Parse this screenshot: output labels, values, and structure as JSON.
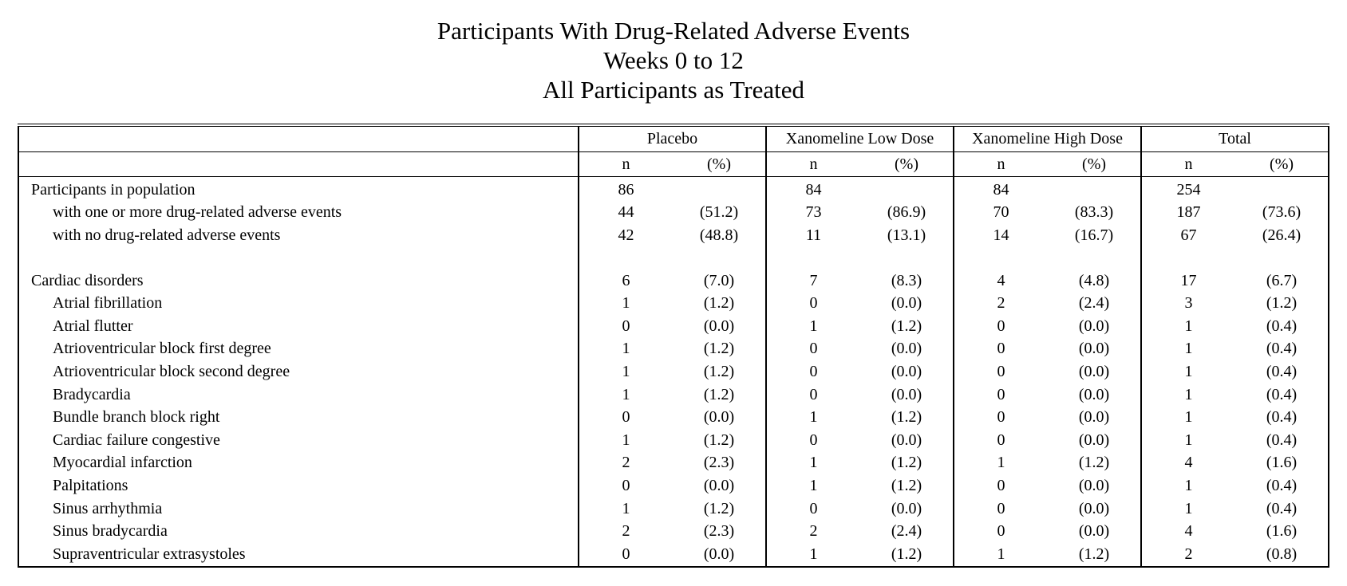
{
  "title": {
    "line1": "Participants With Drug-Related Adverse Events",
    "line2": "Weeks 0 to 12",
    "line3": "All Participants as Treated"
  },
  "groups": [
    "Placebo",
    "Xanomeline Low Dose",
    "Xanomeline High Dose",
    "Total"
  ],
  "subheaders": {
    "n": "n",
    "pct": "(%)"
  },
  "rows": [
    {
      "label": "Participants in population",
      "indent": 0,
      "vals": [
        [
          "86",
          ""
        ],
        [
          "84",
          ""
        ],
        [
          "84",
          ""
        ],
        [
          "254",
          ""
        ]
      ]
    },
    {
      "label": "with one or more drug-related adverse events",
      "indent": 1,
      "vals": [
        [
          "44",
          "(51.2)"
        ],
        [
          "73",
          "(86.9)"
        ],
        [
          "70",
          "(83.3)"
        ],
        [
          "187",
          "(73.6)"
        ]
      ]
    },
    {
      "label": "with no drug-related adverse events",
      "indent": 1,
      "vals": [
        [
          "42",
          "(48.8)"
        ],
        [
          "11",
          "(13.1)"
        ],
        [
          "14",
          "(16.7)"
        ],
        [
          "67",
          "(26.4)"
        ]
      ]
    },
    {
      "spacer": true
    },
    {
      "label": "Cardiac disorders",
      "indent": 0,
      "vals": [
        [
          "6",
          "(7.0)"
        ],
        [
          "7",
          "(8.3)"
        ],
        [
          "4",
          "(4.8)"
        ],
        [
          "17",
          "(6.7)"
        ]
      ]
    },
    {
      "label": "Atrial fibrillation",
      "indent": 1,
      "vals": [
        [
          "1",
          "(1.2)"
        ],
        [
          "0",
          "(0.0)"
        ],
        [
          "2",
          "(2.4)"
        ],
        [
          "3",
          "(1.2)"
        ]
      ]
    },
    {
      "label": "Atrial flutter",
      "indent": 1,
      "vals": [
        [
          "0",
          "(0.0)"
        ],
        [
          "1",
          "(1.2)"
        ],
        [
          "0",
          "(0.0)"
        ],
        [
          "1",
          "(0.4)"
        ]
      ]
    },
    {
      "label": "Atrioventricular block first degree",
      "indent": 1,
      "vals": [
        [
          "1",
          "(1.2)"
        ],
        [
          "0",
          "(0.0)"
        ],
        [
          "0",
          "(0.0)"
        ],
        [
          "1",
          "(0.4)"
        ]
      ]
    },
    {
      "label": "Atrioventricular block second degree",
      "indent": 1,
      "vals": [
        [
          "1",
          "(1.2)"
        ],
        [
          "0",
          "(0.0)"
        ],
        [
          "0",
          "(0.0)"
        ],
        [
          "1",
          "(0.4)"
        ]
      ]
    },
    {
      "label": "Bradycardia",
      "indent": 1,
      "vals": [
        [
          "1",
          "(1.2)"
        ],
        [
          "0",
          "(0.0)"
        ],
        [
          "0",
          "(0.0)"
        ],
        [
          "1",
          "(0.4)"
        ]
      ]
    },
    {
      "label": "Bundle branch block right",
      "indent": 1,
      "vals": [
        [
          "0",
          "(0.0)"
        ],
        [
          "1",
          "(1.2)"
        ],
        [
          "0",
          "(0.0)"
        ],
        [
          "1",
          "(0.4)"
        ]
      ]
    },
    {
      "label": "Cardiac failure congestive",
      "indent": 1,
      "vals": [
        [
          "1",
          "(1.2)"
        ],
        [
          "0",
          "(0.0)"
        ],
        [
          "0",
          "(0.0)"
        ],
        [
          "1",
          "(0.4)"
        ]
      ]
    },
    {
      "label": "Myocardial infarction",
      "indent": 1,
      "vals": [
        [
          "2",
          "(2.3)"
        ],
        [
          "1",
          "(1.2)"
        ],
        [
          "1",
          "(1.2)"
        ],
        [
          "4",
          "(1.6)"
        ]
      ]
    },
    {
      "label": "Palpitations",
      "indent": 1,
      "vals": [
        [
          "0",
          "(0.0)"
        ],
        [
          "1",
          "(1.2)"
        ],
        [
          "0",
          "(0.0)"
        ],
        [
          "1",
          "(0.4)"
        ]
      ]
    },
    {
      "label": "Sinus arrhythmia",
      "indent": 1,
      "vals": [
        [
          "1",
          "(1.2)"
        ],
        [
          "0",
          "(0.0)"
        ],
        [
          "0",
          "(0.0)"
        ],
        [
          "1",
          "(0.4)"
        ]
      ]
    },
    {
      "label": "Sinus bradycardia",
      "indent": 1,
      "vals": [
        [
          "2",
          "(2.3)"
        ],
        [
          "2",
          "(2.4)"
        ],
        [
          "0",
          "(0.0)"
        ],
        [
          "4",
          "(1.6)"
        ]
      ]
    },
    {
      "label": "Supraventricular extrasystoles",
      "indent": 1,
      "vals": [
        [
          "0",
          "(0.0)"
        ],
        [
          "1",
          "(1.2)"
        ],
        [
          "1",
          "(1.2)"
        ],
        [
          "2",
          "(0.8)"
        ]
      ]
    }
  ]
}
